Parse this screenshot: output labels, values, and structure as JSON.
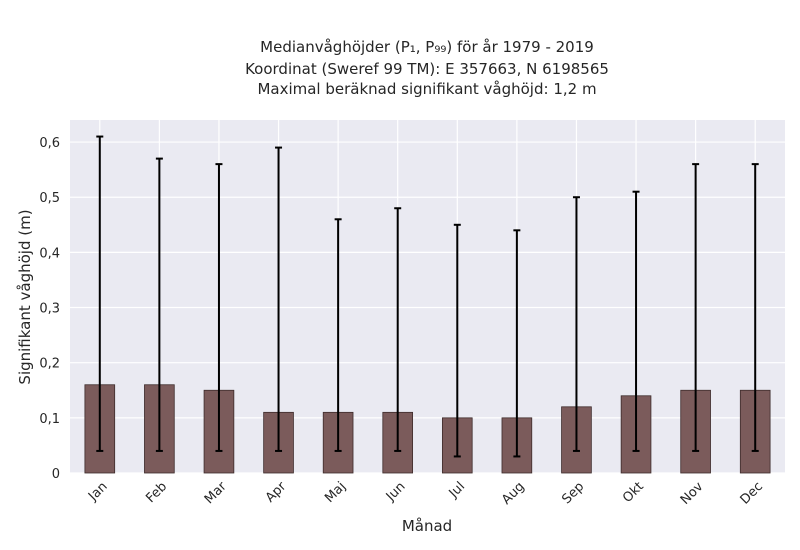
{
  "chart_data": {
    "type": "bar",
    "title_lines": [
      "Medianvåghöjder (P₁, P₉₉) för år 1979 - 2019",
      "Koordinat (Sweref 99 TM): E 357663, N 6198565",
      "Maximal beräknad signifikant våghöjd: 1,2 m"
    ],
    "xlabel": "Månad",
    "ylabel": "Signifikant våghöjd (m)",
    "categories": [
      "Jan",
      "Feb",
      "Mar",
      "Apr",
      "Maj",
      "Jun",
      "Jul",
      "Aug",
      "Sep",
      "Okt",
      "Nov",
      "Dec"
    ],
    "values": [
      0.16,
      0.16,
      0.15,
      0.11,
      0.11,
      0.11,
      0.1,
      0.1,
      0.12,
      0.14,
      0.15,
      0.15
    ],
    "p1": [
      0.04,
      0.04,
      0.04,
      0.04,
      0.04,
      0.04,
      0.03,
      0.03,
      0.04,
      0.04,
      0.04,
      0.04
    ],
    "p99": [
      0.61,
      0.57,
      0.56,
      0.59,
      0.46,
      0.48,
      0.45,
      0.44,
      0.5,
      0.51,
      0.56,
      0.56
    ],
    "ylim": [
      0,
      0.64
    ],
    "yticks": [
      "0",
      "0,1",
      "0,2",
      "0,3",
      "0,4",
      "0,5",
      "0,6"
    ],
    "ytick_values": [
      0,
      0.1,
      0.2,
      0.3,
      0.4,
      0.5,
      0.6
    ],
    "grid": true,
    "colors": {
      "bar": "#7b5b5b",
      "bar_edge": "#3d2b2b",
      "errorbar": "#000000",
      "plot_background": "#eaeaf2",
      "grid": "#ffffff"
    }
  }
}
